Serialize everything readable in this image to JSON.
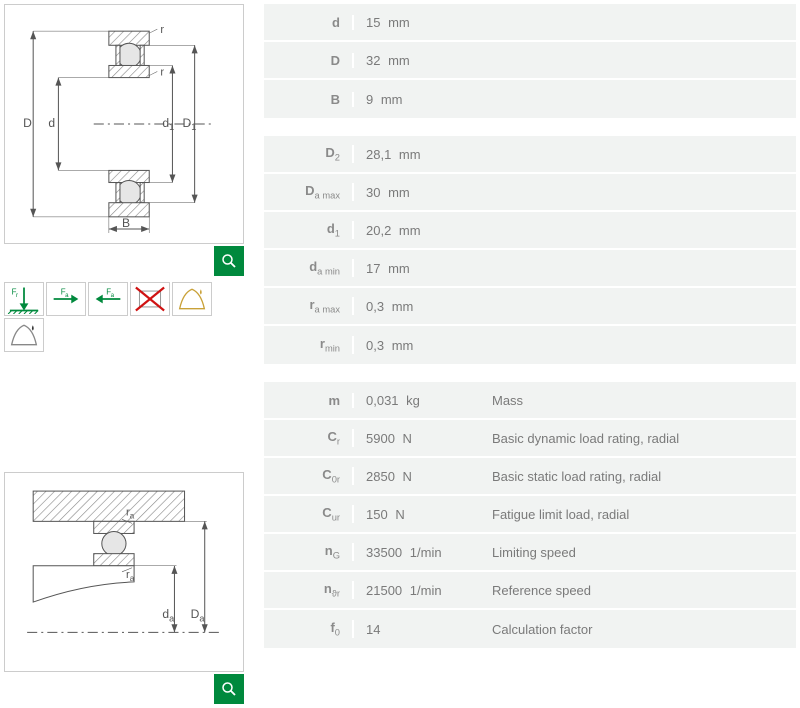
{
  "colors": {
    "accent_green": "#00893d",
    "bg_gray": "#f1f3f2",
    "border_gray": "#cccccc",
    "text_gray": "#7a7a7a",
    "hatch_fill": "#b8b8b8",
    "line_dark": "#555555"
  },
  "diagram1": {
    "labels": {
      "D": "D",
      "d": "d",
      "d1": "d",
      "d1sub": "1",
      "D1": "D",
      "D1sub": "1",
      "B": "B",
      "r": "r"
    }
  },
  "diagram2": {
    "labels": {
      "ra": "r",
      "rasub": "a",
      "da": "d",
      "dasub": "a",
      "Da": "D",
      "Dasub": "a"
    }
  },
  "icons": [
    {
      "name": "radial-load-icon",
      "type": "fr"
    },
    {
      "name": "axial-load-right-icon",
      "type": "fa_right"
    },
    {
      "name": "axial-load-left-icon",
      "type": "fa_left"
    },
    {
      "name": "not-suitable-icon",
      "type": "cross"
    },
    {
      "name": "grease-icon",
      "type": "grease"
    },
    {
      "name": "oil-icon",
      "type": "oil"
    }
  ],
  "table1": {
    "type": "table",
    "rows": [
      {
        "sym": "d",
        "sub": "",
        "suf": "",
        "val": "15",
        "unit": "mm"
      },
      {
        "sym": "D",
        "sub": "",
        "suf": "",
        "val": "32",
        "unit": "mm"
      },
      {
        "sym": "B",
        "sub": "",
        "suf": "",
        "val": "9",
        "unit": "mm"
      }
    ]
  },
  "table2": {
    "type": "table",
    "rows": [
      {
        "sym": "D",
        "sub": "2",
        "suf": "",
        "val": "28,1",
        "unit": "mm"
      },
      {
        "sym": "D",
        "sub": "a",
        "suf": " max",
        "val": "30",
        "unit": "mm"
      },
      {
        "sym": "d",
        "sub": "1",
        "suf": "",
        "val": "20,2",
        "unit": "mm"
      },
      {
        "sym": "d",
        "sub": "a",
        "suf": " min",
        "val": "17",
        "unit": "mm"
      },
      {
        "sym": "r",
        "sub": "a",
        "suf": " max",
        "val": "0,3",
        "unit": "mm"
      },
      {
        "sym": "r",
        "sub": "min",
        "suf": "",
        "val": "0,3",
        "unit": "mm"
      }
    ]
  },
  "table3": {
    "type": "table",
    "rows": [
      {
        "sym": "m",
        "sub": "",
        "suf": "",
        "val": "0,031",
        "unit": "kg",
        "desc": "Mass"
      },
      {
        "sym": "C",
        "sub": "r",
        "suf": "",
        "val": "5900",
        "unit": "N",
        "desc": "Basic dynamic load rating, radial"
      },
      {
        "sym": "C",
        "sub": "0r",
        "suf": "",
        "val": "2850",
        "unit": "N",
        "desc": "Basic static load rating, radial"
      },
      {
        "sym": "C",
        "sub": "ur",
        "suf": "",
        "val": "150",
        "unit": "N",
        "desc": "Fatigue limit load, radial"
      },
      {
        "sym": "n",
        "sub": "G",
        "suf": "",
        "val": "33500",
        "unit": "1/min",
        "desc": "Limiting speed"
      },
      {
        "sym": "n",
        "sub": "ϑr",
        "suf": "",
        "val": "21500",
        "unit": "1/min",
        "desc": "Reference speed"
      },
      {
        "sym": "f",
        "sub": "0",
        "suf": "",
        "val": "14",
        "unit": "",
        "desc": "Calculation factor"
      }
    ]
  }
}
